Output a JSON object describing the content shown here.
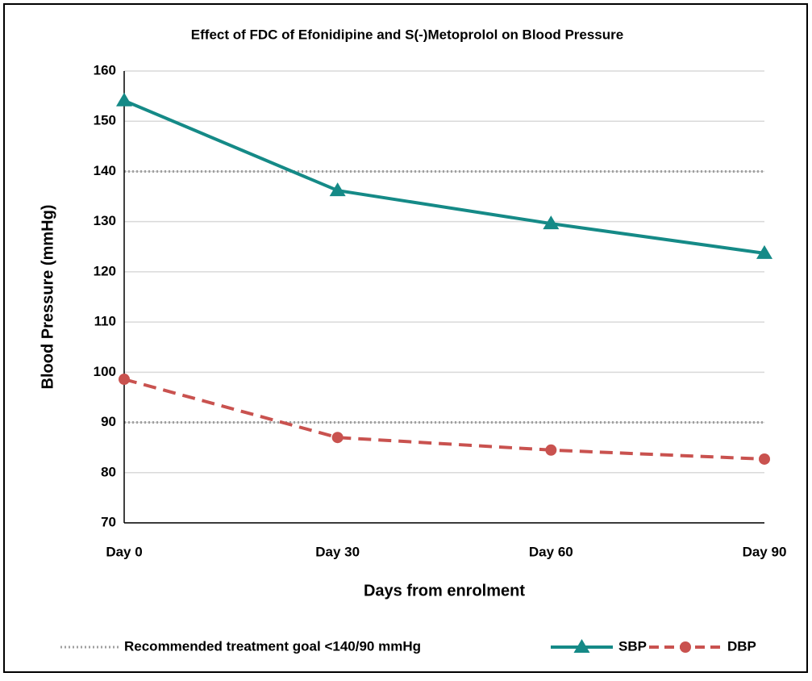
{
  "chart_data": {
    "type": "line",
    "title": "Effect of FDC of Efonidipine and S(-)Metoprolol on Blood Pressure",
    "x_label": "Days from enrolment",
    "y_label": "Blood Pressure (mmHg)",
    "categories": [
      "Day 0",
      "Day 30",
      "Day 60",
      "Day 90"
    ],
    "series": [
      {
        "name": "SBP",
        "color": "#158a87",
        "marker": "triangle",
        "dash": "solid",
        "values": [
          154.1,
          136.2,
          129.6,
          123.7
        ]
      },
      {
        "name": "DBP",
        "color": "#c9524f",
        "marker": "circle",
        "dash": "dashed",
        "values": [
          98.6,
          87,
          84.5,
          82.7
        ]
      }
    ],
    "reference_lines": {
      "name": "Recommended treatment goal <140/90 mmHg",
      "color": "#a0a0a0",
      "values": [
        140,
        90
      ]
    },
    "ylim": [
      70,
      160
    ],
    "yticks": [
      70,
      80,
      90,
      100,
      110,
      120,
      130,
      140,
      150,
      160
    ],
    "grid": true
  }
}
